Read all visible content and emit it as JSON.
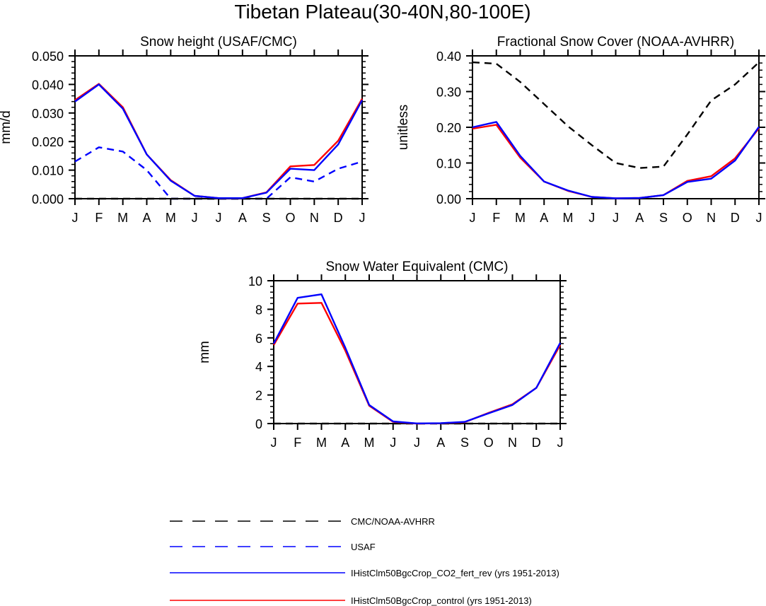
{
  "page": {
    "title": "Tibetan Plateau(30-40N,80-100E)"
  },
  "colors": {
    "obs_cmc": "#000000",
    "obs_usaf": "#0000ff",
    "co2": "#0000ff",
    "control": "#ff0000"
  },
  "legend": [
    {
      "label": "CMC/NOAA-AVHRR",
      "color": "#000000",
      "dash": true
    },
    {
      "label": "USAF",
      "color": "#0000ff",
      "dash": true
    },
    {
      "label": "IHistClm50BgcCrop_CO2_fert_rev (yrs 1951-2013)",
      "color": "#0000ff",
      "dash": false
    },
    {
      "label": "IHistClm50BgcCrop_control (yrs 1951-2013)",
      "color": "#ff0000",
      "dash": false
    }
  ],
  "chart_data": [
    {
      "id": "snow-height",
      "type": "line",
      "title": "Snow height (USAF/CMC)",
      "xlabel": "",
      "ylabel": "mm/d",
      "categories": [
        "J",
        "F",
        "M",
        "A",
        "M",
        "J",
        "J",
        "A",
        "S",
        "O",
        "N",
        "D",
        "J"
      ],
      "ylim": [
        0,
        0.05
      ],
      "yticks": [
        "0.000",
        "0.010",
        "0.020",
        "0.030",
        "0.040",
        "0.050"
      ],
      "series": [
        {
          "values": [
            0.013,
            0.018,
            0.0165,
            0.01,
            0.0,
            0.0,
            0.0,
            0.0,
            0.0,
            0.0075,
            0.006,
            0.0105,
            0.013
          ],
          "color": "#0000ff",
          "dash": true
        },
        {
          "values": [
            0.0,
            0.0,
            0.0,
            0.0,
            0.0,
            0.0,
            0.0,
            0.0,
            0.0,
            0.0,
            0.0,
            0.0,
            0.0
          ],
          "color": "#000000",
          "dash": true
        },
        {
          "values": [
            0.0345,
            0.0402,
            0.032,
            0.0155,
            0.0065,
            0.001,
            0.0002,
            0.0002,
            0.0022,
            0.0113,
            0.0118,
            0.0203,
            0.035
          ],
          "color": "#ff0000",
          "dash": false
        },
        {
          "values": [
            0.034,
            0.04,
            0.0315,
            0.0155,
            0.0063,
            0.001,
            0.0002,
            0.0002,
            0.0021,
            0.0105,
            0.01,
            0.019,
            0.0345
          ],
          "color": "#0000ff",
          "dash": false
        }
      ]
    },
    {
      "id": "fractional-snow-cover",
      "type": "line",
      "title": "Fractional Snow Cover (NOAA-AVHRR)",
      "xlabel": "",
      "ylabel": "unitless",
      "categories": [
        "J",
        "F",
        "M",
        "A",
        "M",
        "J",
        "J",
        "A",
        "S",
        "O",
        "N",
        "D",
        "J"
      ],
      "ylim": [
        0,
        0.4
      ],
      "yticks": [
        "0.00",
        "0.10",
        "0.20",
        "0.30",
        "0.40"
      ],
      "series": [
        {
          "values": [
            0.382,
            0.378,
            0.327,
            0.265,
            0.203,
            0.15,
            0.1,
            0.086,
            0.09,
            0.18,
            0.275,
            0.32,
            0.382
          ],
          "color": "#000000",
          "dash": true
        },
        {
          "values": [
            0.196,
            0.207,
            0.115,
            0.048,
            0.022,
            0.005,
            0.001,
            0.002,
            0.01,
            0.05,
            0.063,
            0.113,
            0.197
          ],
          "color": "#ff0000",
          "dash": false
        },
        {
          "values": [
            0.2,
            0.215,
            0.12,
            0.048,
            0.023,
            0.005,
            0.001,
            0.002,
            0.01,
            0.047,
            0.056,
            0.107,
            0.201
          ],
          "color": "#0000ff",
          "dash": false
        }
      ]
    },
    {
      "id": "snow-water-equivalent",
      "type": "line",
      "title": "Snow Water Equivalent (CMC)",
      "xlabel": "",
      "ylabel": "mm",
      "categories": [
        "J",
        "F",
        "M",
        "A",
        "M",
        "J",
        "J",
        "A",
        "S",
        "O",
        "N",
        "D",
        "J"
      ],
      "ylim": [
        0,
        10
      ],
      "yticks": [
        "0",
        "2",
        "4",
        "6",
        "8",
        "10"
      ],
      "series": [
        {
          "values": [
            0,
            0,
            0,
            0,
            0,
            0,
            0,
            0,
            0,
            0,
            0,
            0,
            0
          ],
          "color": "#000000",
          "dash": true
        },
        {
          "values": [
            5.5,
            8.4,
            8.45,
            5.1,
            1.25,
            0.12,
            0.0,
            0.02,
            0.1,
            0.75,
            1.35,
            2.5,
            5.5
          ],
          "color": "#ff0000",
          "dash": false
        },
        {
          "values": [
            5.6,
            8.8,
            9.05,
            5.3,
            1.3,
            0.15,
            0.01,
            0.03,
            0.12,
            0.72,
            1.3,
            2.5,
            5.65
          ],
          "color": "#0000ff",
          "dash": false
        }
      ]
    }
  ]
}
